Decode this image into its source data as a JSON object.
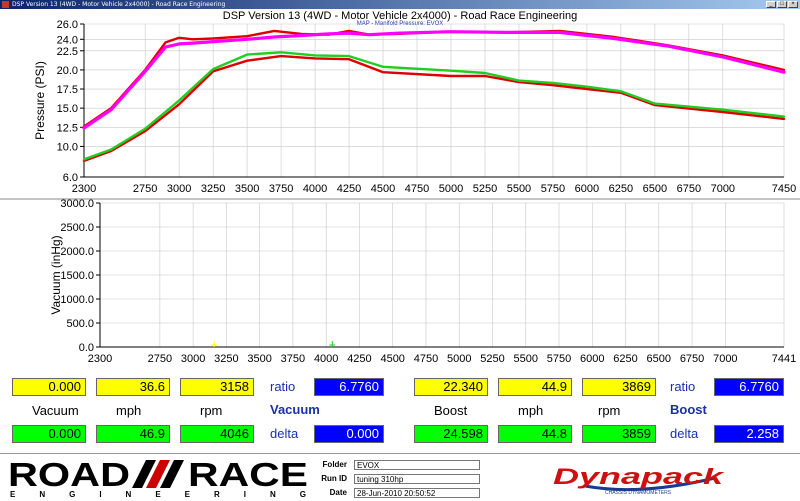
{
  "window": {
    "title": "DSP Version 13 (4WD - Motor Vehicle 2x4000) - Road Race Engineering",
    "buttons": [
      "_",
      "□",
      "×"
    ]
  },
  "chart_header": {
    "title": "DSP Version 13 (4WD - Motor Vehicle 2x4000) - Road Race Engineering",
    "subtitle": "MAP - Manifold Pressure: EVOX"
  },
  "chart_data": [
    {
      "type": "line",
      "ylabel": "Pressure (PSI)",
      "xlabel": "",
      "xlim": [
        2300,
        7450
      ],
      "ylim": [
        6.0,
        26.0
      ],
      "x_ticks": [
        "2300",
        "2750",
        "3000",
        "3250",
        "3500",
        "3750",
        "4000",
        "4250",
        "4500",
        "4750",
        "5000",
        "5250",
        "5500",
        "5750",
        "6000",
        "6250",
        "6500",
        "6750",
        "7000",
        "7450"
      ],
      "y_ticks": [
        "6.0",
        "10.0",
        "12.5",
        "15.0",
        "17.5",
        "20.0",
        "22.5",
        "24.0",
        "26.0"
      ],
      "grid": true,
      "series": [
        {
          "color": "#dd0000",
          "x": [
            2300,
            2500,
            2750,
            2900,
            3000,
            3100,
            3250,
            3500,
            3700,
            3900,
            4100,
            4250,
            4400,
            4600,
            5000,
            5400,
            5800,
            6200,
            6600,
            7000,
            7450
          ],
          "y": [
            12.6,
            15.0,
            20.0,
            23.6,
            24.2,
            24.0,
            24.1,
            24.4,
            25.1,
            24.7,
            24.6,
            25.1,
            24.6,
            24.7,
            25.0,
            24.9,
            25.1,
            24.3,
            23.2,
            21.9,
            20.0
          ]
        },
        {
          "color": "#ff00ff",
          "x": [
            2300,
            2500,
            2750,
            2900,
            3000,
            3100,
            3250,
            3500,
            3700,
            3900,
            4100,
            4250,
            4400,
            4600,
            5000,
            5400,
            5800,
            6200,
            6600,
            7000,
            7450
          ],
          "y": [
            12.4,
            14.8,
            19.8,
            23.0,
            23.4,
            23.5,
            23.7,
            24.0,
            24.3,
            24.5,
            24.7,
            24.8,
            24.6,
            24.8,
            25.0,
            24.9,
            24.9,
            24.1,
            23.1,
            21.7,
            19.7
          ]
        },
        {
          "color": "#dd0000",
          "x": [
            2300,
            2500,
            2750,
            3000,
            3250,
            3500,
            3750,
            4000,
            4250,
            4500,
            5000,
            5250,
            5500,
            5750,
            6000,
            6250,
            6500,
            7000,
            7450
          ],
          "y": [
            8.1,
            9.4,
            12.0,
            15.5,
            19.8,
            21.2,
            21.8,
            21.5,
            21.4,
            19.7,
            19.2,
            19.2,
            18.4,
            18.0,
            17.5,
            17.0,
            15.4,
            14.5,
            13.6
          ]
        },
        {
          "color": "#22cc22",
          "x": [
            2300,
            2500,
            2750,
            3000,
            3250,
            3500,
            3750,
            4000,
            4250,
            4500,
            5000,
            5250,
            5500,
            5750,
            6000,
            6250,
            6500,
            7000,
            7450
          ],
          "y": [
            8.3,
            9.6,
            12.3,
            16.0,
            20.1,
            22.0,
            22.3,
            21.9,
            21.8,
            20.4,
            19.9,
            19.6,
            18.6,
            18.3,
            17.8,
            17.2,
            15.6,
            14.8,
            13.9
          ]
        }
      ]
    },
    {
      "type": "line",
      "ylabel": "Vacuum (inHg)",
      "xlabel": "",
      "xlim": [
        2300,
        7441
      ],
      "ylim": [
        0.0,
        3000.0
      ],
      "x_ticks": [
        "2300",
        "2750",
        "3000",
        "3250",
        "3500",
        "3750",
        "4000",
        "4250",
        "4500",
        "4750",
        "5000",
        "5250",
        "5500",
        "5750",
        "6000",
        "6250",
        "6500",
        "6750",
        "7000",
        "7441"
      ],
      "y_ticks": [
        "0.0",
        "500.0",
        "1000.0",
        "1500.0",
        "2000.0",
        "2500.0",
        "3000.0"
      ],
      "grid": true,
      "series": [
        {
          "color": "#ffff00",
          "x": [
            3158
          ],
          "y": [
            0.0
          ]
        },
        {
          "color": "#22cc22",
          "x": [
            4046
          ],
          "y": [
            0.0
          ]
        }
      ]
    }
  ],
  "readouts": {
    "vacuum_row1": [
      "0.000",
      "36.6",
      "3158"
    ],
    "vacuum_ratio_label": "ratio",
    "vacuum_ratio_value": "6.7760",
    "boost_row1": [
      "22.340",
      "44.9",
      "3869"
    ],
    "boost_ratio_label": "ratio",
    "boost_ratio_value": "6.7760",
    "labels_left": [
      "Vacuum",
      "mph",
      "rpm"
    ],
    "section_vacuum": "Vacuum",
    "labels_right": [
      "Boost",
      "mph",
      "rpm"
    ],
    "section_boost": "Boost",
    "vacuum_row2": [
      "0.000",
      "46.9",
      "4046"
    ],
    "vacuum_delta_label": "delta",
    "vacuum_delta_value": "0.000",
    "boost_row2": [
      "24.598",
      "44.8",
      "3859"
    ],
    "boost_delta_label": "delta",
    "boost_delta_value": "2.258"
  },
  "footer": {
    "logo_road": "ROAD",
    "logo_race": "RACE",
    "logo_engineering": "E N G I N E E R I N G",
    "folder_label": "Folder",
    "folder_value": "EVOX",
    "runid_label": "Run ID",
    "runid_value": "tuning 310hp",
    "date_label": "Date",
    "date_value": "28-Jun-2010 20:50:52",
    "brand_logo": "Dynapack",
    "brand_tagline": "CHASSIS DYNAMOMETERS"
  },
  "colors": {
    "red_trace": "#dd0000",
    "magenta_trace": "#ff00ff",
    "green_trace": "#22cc22",
    "yellow_box": "#ffff00",
    "green_box": "#00ff00",
    "blue_box": "#0000ff"
  }
}
